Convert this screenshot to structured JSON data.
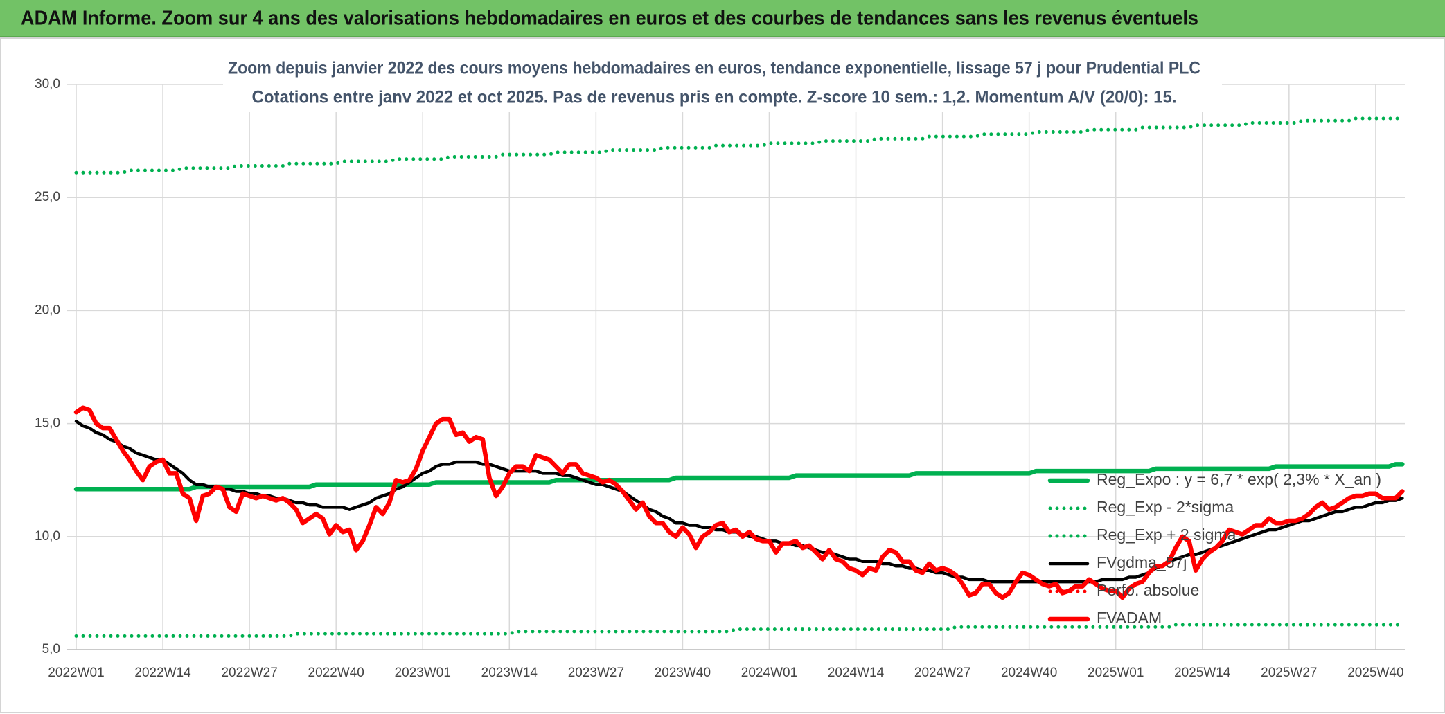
{
  "header": {
    "title": "ADAM Informe. Zoom sur 4 ans des valorisations hebdomadaires en euros et des courbes de tendances sans les revenus éventuels"
  },
  "chart_data": {
    "type": "line",
    "title": "Zoom depuis janvier 2022 des cours moyens hebdomadaires en euros, tendance exponentielle, lissage 57 j pour Prudential PLC",
    "subtitle": "Cotations entre janv 2022 et oct 2025. Pas de revenus pris en compte. Z-score 10 sem.: 1,2. Momentum A/V (20/0): 15.",
    "categories": [
      "2022W01",
      null,
      null,
      null,
      null,
      null,
      null,
      null,
      null,
      null,
      null,
      null,
      null,
      "2022W14",
      null,
      null,
      null,
      null,
      null,
      null,
      null,
      null,
      null,
      null,
      null,
      null,
      "2022W27",
      null,
      null,
      null,
      null,
      null,
      null,
      null,
      null,
      null,
      null,
      null,
      null,
      "2022W40",
      null,
      null,
      null,
      null,
      null,
      null,
      null,
      null,
      null,
      null,
      null,
      null,
      "2023W01",
      null,
      null,
      null,
      null,
      null,
      null,
      null,
      null,
      null,
      null,
      null,
      null,
      "2023W14",
      null,
      null,
      null,
      null,
      null,
      null,
      null,
      null,
      null,
      null,
      null,
      null,
      "2023W27",
      null,
      null,
      null,
      null,
      null,
      null,
      null,
      null,
      null,
      null,
      null,
      null,
      "2023W40",
      null,
      null,
      null,
      null,
      null,
      null,
      null,
      null,
      null,
      null,
      null,
      null,
      "2024W01",
      null,
      null,
      null,
      null,
      null,
      null,
      null,
      null,
      null,
      null,
      null,
      null,
      "2024W14",
      null,
      null,
      null,
      null,
      null,
      null,
      null,
      null,
      null,
      null,
      null,
      null,
      "2024W27",
      null,
      null,
      null,
      null,
      null,
      null,
      null,
      null,
      null,
      null,
      null,
      null,
      "2024W40",
      null,
      null,
      null,
      null,
      null,
      null,
      null,
      null,
      null,
      null,
      null,
      null,
      "2025W01",
      null,
      null,
      null,
      null,
      null,
      null,
      null,
      null,
      null,
      null,
      null,
      null,
      "2025W14",
      null,
      null,
      null,
      null,
      null,
      null,
      null,
      null,
      null,
      null,
      null,
      null,
      "2025W27",
      null,
      null,
      null,
      null,
      null,
      null,
      null,
      null,
      null,
      null,
      null,
      null,
      "2025W40",
      null,
      null,
      null,
      null
    ],
    "ylim": [
      5,
      30
    ],
    "yticks": [
      {
        "value": 5,
        "label": "5,0"
      },
      {
        "value": 10,
        "label": "10,0"
      },
      {
        "value": 15,
        "label": "15,0"
      },
      {
        "value": 20,
        "label": "20,0"
      },
      {
        "value": 25,
        "label": "25,0"
      },
      {
        "value": 30,
        "label": "30,0"
      }
    ],
    "grid": true,
    "legend": "lower right",
    "series": [
      {
        "name": "Reg_Expo : y = 6,7 * exp( 2,3% *  X_an )",
        "color": "#00b050",
        "dash": "solid",
        "values": [
          12.1,
          12.1,
          12.1,
          12.1,
          12.1,
          12.1,
          12.1,
          12.1,
          12.1,
          12.1,
          12.1,
          12.1,
          12.1,
          12.1,
          12.1,
          12.1,
          12.1,
          12.1,
          12.2,
          12.2,
          12.2,
          12.2,
          12.2,
          12.2,
          12.2,
          12.2,
          12.2,
          12.2,
          12.2,
          12.2,
          12.2,
          12.2,
          12.2,
          12.2,
          12.2,
          12.2,
          12.3,
          12.3,
          12.3,
          12.3,
          12.3,
          12.3,
          12.3,
          12.3,
          12.3,
          12.3,
          12.3,
          12.3,
          12.3,
          12.3,
          12.3,
          12.3,
          12.3,
          12.3,
          12.4,
          12.4,
          12.4,
          12.4,
          12.4,
          12.4,
          12.4,
          12.4,
          12.4,
          12.4,
          12.4,
          12.4,
          12.4,
          12.4,
          12.4,
          12.4,
          12.4,
          12.4,
          12.5,
          12.5,
          12.5,
          12.5,
          12.5,
          12.5,
          12.5,
          12.5,
          12.5,
          12.5,
          12.5,
          12.5,
          12.5,
          12.5,
          12.5,
          12.5,
          12.5,
          12.5,
          12.6,
          12.6,
          12.6,
          12.6,
          12.6,
          12.6,
          12.6,
          12.6,
          12.6,
          12.6,
          12.6,
          12.6,
          12.6,
          12.6,
          12.6,
          12.6,
          12.6,
          12.6,
          12.7,
          12.7,
          12.7,
          12.7,
          12.7,
          12.7,
          12.7,
          12.7,
          12.7,
          12.7,
          12.7,
          12.7,
          12.7,
          12.7,
          12.7,
          12.7,
          12.7,
          12.7,
          12.8,
          12.8,
          12.8,
          12.8,
          12.8,
          12.8,
          12.8,
          12.8,
          12.8,
          12.8,
          12.8,
          12.8,
          12.8,
          12.8,
          12.8,
          12.8,
          12.8,
          12.8,
          12.9,
          12.9,
          12.9,
          12.9,
          12.9,
          12.9,
          12.9,
          12.9,
          12.9,
          12.9,
          12.9,
          12.9,
          12.9,
          12.9,
          12.9,
          12.9,
          12.9,
          12.9,
          13.0,
          13.0,
          13.0,
          13.0,
          13.0,
          13.0,
          13.0,
          13.0,
          13.0,
          13.0,
          13.0,
          13.0,
          13.0,
          13.0,
          13.0,
          13.0,
          13.0,
          13.0,
          13.1,
          13.1,
          13.1,
          13.1,
          13.1,
          13.1,
          13.1,
          13.1,
          13.1,
          13.1,
          13.1,
          13.1,
          13.1,
          13.1,
          13.1,
          13.1,
          13.1,
          13.1,
          13.2,
          13.2
        ]
      },
      {
        "name": "Reg_Exp - 2*sigma",
        "color": "#00b050",
        "dash": "dotted",
        "values": [
          5.6,
          5.6,
          5.6,
          5.6,
          5.6,
          5.6,
          5.6,
          5.6,
          5.6,
          5.6,
          5.6,
          5.6,
          5.6,
          5.6,
          5.6,
          5.6,
          5.6,
          5.6,
          5.6,
          5.6,
          5.6,
          5.6,
          5.6,
          5.6,
          5.6,
          5.6,
          5.6,
          5.6,
          5.6,
          5.6,
          5.6,
          5.6,
          5.6,
          5.7,
          5.7,
          5.7,
          5.7,
          5.7,
          5.7,
          5.7,
          5.7,
          5.7,
          5.7,
          5.7,
          5.7,
          5.7,
          5.7,
          5.7,
          5.7,
          5.7,
          5.7,
          5.7,
          5.7,
          5.7,
          5.7,
          5.7,
          5.7,
          5.7,
          5.7,
          5.7,
          5.7,
          5.7,
          5.7,
          5.7,
          5.7,
          5.7,
          5.8,
          5.8,
          5.8,
          5.8,
          5.8,
          5.8,
          5.8,
          5.8,
          5.8,
          5.8,
          5.8,
          5.8,
          5.8,
          5.8,
          5.8,
          5.8,
          5.8,
          5.8,
          5.8,
          5.8,
          5.8,
          5.8,
          5.8,
          5.8,
          5.8,
          5.8,
          5.8,
          5.8,
          5.8,
          5.8,
          5.8,
          5.8,
          5.8,
          5.9,
          5.9,
          5.9,
          5.9,
          5.9,
          5.9,
          5.9,
          5.9,
          5.9,
          5.9,
          5.9,
          5.9,
          5.9,
          5.9,
          5.9,
          5.9,
          5.9,
          5.9,
          5.9,
          5.9,
          5.9,
          5.9,
          5.9,
          5.9,
          5.9,
          5.9,
          5.9,
          5.9,
          5.9,
          5.9,
          5.9,
          5.9,
          5.9,
          6.0,
          6.0,
          6.0,
          6.0,
          6.0,
          6.0,
          6.0,
          6.0,
          6.0,
          6.0,
          6.0,
          6.0,
          6.0,
          6.0,
          6.0,
          6.0,
          6.0,
          6.0,
          6.0,
          6.0,
          6.0,
          6.0,
          6.0,
          6.0,
          6.0,
          6.0,
          6.0,
          6.0,
          6.0,
          6.0,
          6.0,
          6.0,
          6.0,
          6.1,
          6.1,
          6.1,
          6.1,
          6.1,
          6.1,
          6.1,
          6.1,
          6.1,
          6.1,
          6.1,
          6.1,
          6.1,
          6.1,
          6.1,
          6.1,
          6.1,
          6.1,
          6.1,
          6.1,
          6.1,
          6.1,
          6.1,
          6.1,
          6.1,
          6.1,
          6.1,
          6.1,
          6.1,
          6.1,
          6.1,
          6.1,
          6.1,
          6.1,
          6.1
        ]
      },
      {
        "name": "Reg_Exp + 2 sigma",
        "color": "#00b050",
        "dash": "dotted",
        "values": [
          26.1,
          26.1,
          26.1,
          26.1,
          26.1,
          26.1,
          26.1,
          26.1,
          26.2,
          26.2,
          26.2,
          26.2,
          26.2,
          26.2,
          26.2,
          26.2,
          26.3,
          26.3,
          26.3,
          26.3,
          26.3,
          26.3,
          26.3,
          26.3,
          26.4,
          26.4,
          26.4,
          26.4,
          26.4,
          26.4,
          26.4,
          26.4,
          26.5,
          26.5,
          26.5,
          26.5,
          26.5,
          26.5,
          26.5,
          26.5,
          26.6,
          26.6,
          26.6,
          26.6,
          26.6,
          26.6,
          26.6,
          26.6,
          26.7,
          26.7,
          26.7,
          26.7,
          26.7,
          26.7,
          26.7,
          26.7,
          26.8,
          26.8,
          26.8,
          26.8,
          26.8,
          26.8,
          26.8,
          26.8,
          26.9,
          26.9,
          26.9,
          26.9,
          26.9,
          26.9,
          26.9,
          26.9,
          27.0,
          27.0,
          27.0,
          27.0,
          27.0,
          27.0,
          27.0,
          27.0,
          27.1,
          27.1,
          27.1,
          27.1,
          27.1,
          27.1,
          27.1,
          27.1,
          27.2,
          27.2,
          27.2,
          27.2,
          27.2,
          27.2,
          27.2,
          27.2,
          27.3,
          27.3,
          27.3,
          27.3,
          27.3,
          27.3,
          27.3,
          27.3,
          27.4,
          27.4,
          27.4,
          27.4,
          27.4,
          27.4,
          27.4,
          27.4,
          27.5,
          27.5,
          27.5,
          27.5,
          27.5,
          27.5,
          27.5,
          27.5,
          27.6,
          27.6,
          27.6,
          27.6,
          27.6,
          27.6,
          27.6,
          27.6,
          27.7,
          27.7,
          27.7,
          27.7,
          27.7,
          27.7,
          27.7,
          27.7,
          27.8,
          27.8,
          27.8,
          27.8,
          27.8,
          27.8,
          27.8,
          27.8,
          27.9,
          27.9,
          27.9,
          27.9,
          27.9,
          27.9,
          27.9,
          27.9,
          28.0,
          28.0,
          28.0,
          28.0,
          28.0,
          28.0,
          28.0,
          28.0,
          28.1,
          28.1,
          28.1,
          28.1,
          28.1,
          28.1,
          28.1,
          28.1,
          28.2,
          28.2,
          28.2,
          28.2,
          28.2,
          28.2,
          28.2,
          28.2,
          28.3,
          28.3,
          28.3,
          28.3,
          28.3,
          28.3,
          28.3,
          28.3,
          28.4,
          28.4,
          28.4,
          28.4,
          28.4,
          28.4,
          28.4,
          28.4,
          28.5,
          28.5,
          28.5,
          28.5,
          28.5,
          28.5,
          28.5,
          28.5
        ]
      },
      {
        "name": "FVgdma_57j",
        "color": "#000000",
        "dash": "solid",
        "values": [
          15.1,
          14.9,
          14.8,
          14.6,
          14.5,
          14.3,
          14.2,
          14.0,
          13.9,
          13.7,
          13.6,
          13.5,
          13.4,
          13.4,
          13.2,
          13.0,
          12.8,
          12.5,
          12.3,
          12.3,
          12.2,
          12.2,
          12.1,
          12.1,
          12.0,
          12.0,
          11.9,
          11.9,
          11.8,
          11.8,
          11.7,
          11.7,
          11.6,
          11.5,
          11.5,
          11.4,
          11.4,
          11.3,
          11.3,
          11.3,
          11.3,
          11.2,
          11.3,
          11.4,
          11.5,
          11.7,
          11.8,
          11.9,
          12.1,
          12.2,
          12.4,
          12.6,
          12.8,
          12.9,
          13.1,
          13.2,
          13.2,
          13.3,
          13.3,
          13.3,
          13.3,
          13.2,
          13.2,
          13.1,
          13.0,
          12.9,
          12.9,
          12.9,
          12.9,
          12.9,
          12.8,
          12.8,
          12.8,
          12.7,
          12.7,
          12.6,
          12.5,
          12.4,
          12.3,
          12.3,
          12.2,
          12.1,
          12.0,
          11.8,
          11.6,
          11.4,
          11.2,
          11.1,
          10.9,
          10.8,
          10.6,
          10.6,
          10.5,
          10.5,
          10.4,
          10.4,
          10.3,
          10.3,
          10.2,
          10.2,
          10.1,
          10.0,
          10.0,
          9.9,
          9.8,
          9.8,
          9.7,
          9.7,
          9.6,
          9.6,
          9.5,
          9.4,
          9.3,
          9.3,
          9.2,
          9.1,
          9.0,
          9.0,
          8.9,
          8.9,
          8.9,
          8.8,
          8.8,
          8.7,
          8.7,
          8.6,
          8.6,
          8.5,
          8.5,
          8.4,
          8.4,
          8.3,
          8.2,
          8.2,
          8.1,
          8.1,
          8.1,
          8.0,
          8.0,
          8.0,
          8.0,
          8.0,
          8.0,
          8.0,
          8.0,
          8.0,
          8.0,
          8.0,
          8.0,
          8.0,
          8.0,
          8.0,
          8.0,
          8.0,
          8.1,
          8.1,
          8.1,
          8.1,
          8.2,
          8.2,
          8.3,
          8.4,
          8.6,
          8.7,
          8.9,
          9.0,
          9.1,
          9.2,
          9.2,
          9.3,
          9.4,
          9.5,
          9.6,
          9.7,
          9.8,
          9.9,
          10.0,
          10.1,
          10.2,
          10.3,
          10.3,
          10.4,
          10.5,
          10.6,
          10.7,
          10.7,
          10.8,
          10.9,
          11.0,
          11.1,
          11.1,
          11.2,
          11.3,
          11.3,
          11.4,
          11.5,
          11.5,
          11.6,
          11.6,
          11.7
        ]
      },
      {
        "name": "Perfo. absolue",
        "color": "#ff0000",
        "dash": "dotted"
      },
      {
        "name": "FVADAM",
        "color": "#ff0000",
        "dash": "solid",
        "values": [
          15.5,
          15.7,
          15.6,
          15.0,
          14.8,
          14.8,
          14.3,
          13.8,
          13.4,
          12.9,
          12.5,
          13.1,
          13.3,
          13.4,
          12.8,
          12.8,
          11.9,
          11.7,
          10.7,
          11.8,
          11.9,
          12.2,
          12.1,
          11.3,
          11.1,
          11.9,
          11.8,
          11.7,
          11.8,
          11.7,
          11.6,
          11.7,
          11.5,
          11.2,
          10.6,
          10.8,
          11.0,
          10.8,
          10.1,
          10.5,
          10.2,
          10.3,
          9.4,
          9.8,
          10.5,
          11.3,
          11.0,
          11.5,
          12.5,
          12.4,
          12.5,
          13.0,
          13.8,
          14.4,
          15.0,
          15.2,
          15.2,
          14.5,
          14.6,
          14.2,
          14.4,
          14.3,
          12.6,
          11.8,
          12.2,
          12.8,
          13.1,
          13.1,
          12.9,
          13.6,
          13.5,
          13.4,
          13.1,
          12.8,
          13.2,
          13.2,
          12.8,
          12.7,
          12.6,
          12.4,
          12.5,
          12.3,
          12.0,
          11.6,
          11.2,
          11.5,
          10.9,
          10.6,
          10.6,
          10.2,
          10.0,
          10.4,
          10.1,
          9.5,
          10.0,
          10.2,
          10.5,
          10.6,
          10.2,
          10.3,
          10.0,
          10.2,
          9.9,
          9.8,
          9.8,
          9.3,
          9.7,
          9.7,
          9.8,
          9.5,
          9.6,
          9.3,
          9.0,
          9.4,
          9.0,
          8.9,
          8.6,
          8.5,
          8.3,
          8.6,
          8.5,
          9.1,
          9.4,
          9.3,
          8.9,
          8.9,
          8.5,
          8.4,
          8.8,
          8.5,
          8.6,
          8.5,
          8.3,
          7.9,
          7.4,
          7.5,
          7.9,
          7.9,
          7.5,
          7.3,
          7.5,
          8.0,
          8.4,
          8.3,
          8.1,
          7.9,
          7.8,
          7.9,
          7.5,
          7.6,
          7.8,
          7.8,
          8.1,
          7.9,
          7.7,
          7.6,
          7.6,
          7.3,
          7.7,
          7.9,
          8.0,
          8.4,
          8.7,
          8.7,
          8.9,
          9.5,
          10.0,
          9.8,
          8.5,
          9.0,
          9.3,
          9.5,
          9.8,
          10.3,
          10.2,
          10.1,
          10.3,
          10.5,
          10.5,
          10.8,
          10.6,
          10.6,
          10.7,
          10.7,
          10.8,
          11.0,
          11.3,
          11.5,
          11.2,
          11.3,
          11.5,
          11.7,
          11.8,
          11.8,
          11.9,
          11.9,
          11.7,
          11.7,
          11.7,
          12.0
        ]
      }
    ]
  }
}
